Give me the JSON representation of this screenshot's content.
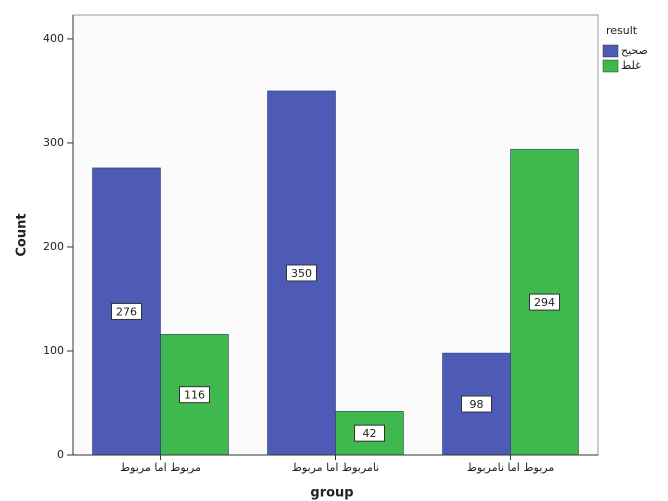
{
  "chart_data": {
    "type": "bar",
    "x_label": "group",
    "y_label": "Count",
    "categories": [
      "مربوط اما مربوط",
      "نامربوط اما مربوط",
      "مربوط اما نامربوط"
    ],
    "series": [
      {
        "name": "صحیح",
        "color": "#4d5bb7",
        "values": [
          276,
          350,
          98
        ]
      },
      {
        "name": "غلط",
        "color": "#3fb84e",
        "values": [
          116,
          42,
          294
        ]
      }
    ],
    "ylim": [
      0,
      423
    ],
    "yticks": [
      0,
      100,
      200,
      300,
      400
    ],
    "legend_title": "result",
    "legend_position": "right",
    "data_labels": true
  }
}
